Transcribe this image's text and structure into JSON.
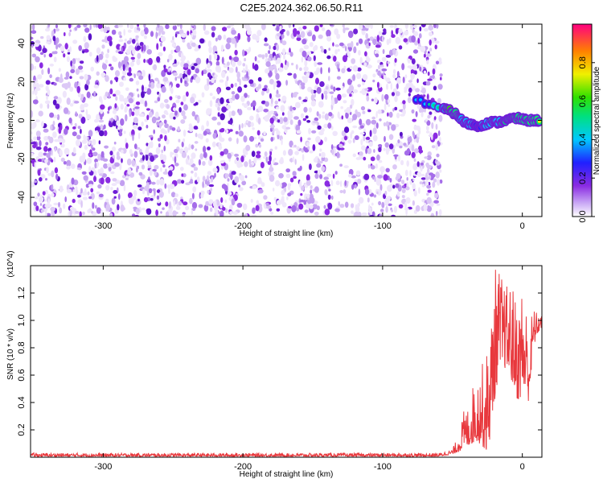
{
  "title": "C2E5.2024.362.06.50.R11",
  "colors": {
    "background_dots": "#8a2be2",
    "snr_line": "#e8383d",
    "axis": "#000000"
  },
  "chart_data": [
    {
      "type": "heatmap",
      "xlabel": "Height of straight line (km)",
      "ylabel": "Frequency (Hz)",
      "xlim": [
        -352,
        14
      ],
      "ylim": [
        -50,
        50
      ],
      "x_ticks": [
        -300,
        -200,
        -100,
        0
      ],
      "y_ticks": [
        -40,
        -20,
        0,
        20,
        40
      ],
      "noise_region_x": [
        -352,
        -58
      ],
      "colormap": "rainbow",
      "colorbar": {
        "label": "Normalized spectral amplitude",
        "range": [
          0,
          1
        ],
        "ticks": [
          "0.0",
          "0.2",
          "0.4",
          "0.6",
          "0.8"
        ]
      },
      "signal_track": [
        {
          "x": -76,
          "y": 11,
          "amp": 0.5
        },
        {
          "x": -57,
          "y": 6,
          "amp": 0.55
        },
        {
          "x": -52,
          "y": 5,
          "amp": 0.85
        },
        {
          "x": -47,
          "y": 3,
          "amp": 0.75
        },
        {
          "x": -42,
          "y": -1,
          "amp": 0.6
        },
        {
          "x": -37,
          "y": -2,
          "amp": 0.55
        },
        {
          "x": -32,
          "y": -3,
          "amp": 0.5
        },
        {
          "x": -27,
          "y": -2,
          "amp": 0.55
        },
        {
          "x": -22,
          "y": -1,
          "amp": 0.7
        },
        {
          "x": -17,
          "y": -1,
          "amp": 0.65
        },
        {
          "x": -12,
          "y": 0,
          "amp": 0.75
        },
        {
          "x": -7,
          "y": 1,
          "amp": 0.8
        },
        {
          "x": -2,
          "y": 1,
          "amp": 0.7
        },
        {
          "x": 3,
          "y": 0,
          "amp": 0.75
        },
        {
          "x": 8,
          "y": 0,
          "amp": 0.8
        },
        {
          "x": 13,
          "y": 0,
          "amp": 0.75
        }
      ]
    },
    {
      "type": "line",
      "xlabel": "Height of straight line (km)",
      "ylabel": "SNR (10 * v/v)",
      "y_multiplier": "(x10^4)",
      "xlim": [
        -352,
        14
      ],
      "ylim": [
        0,
        1.4
      ],
      "x_ticks": [
        -300,
        -200,
        -100,
        0
      ],
      "y_ticks": [
        0.2,
        0.4,
        0.6,
        0.8,
        1.0,
        1.2
      ],
      "envelope": [
        {
          "x": -352,
          "lo": 0.005,
          "hi": 0.03
        },
        {
          "x": -60,
          "lo": 0.005,
          "hi": 0.03
        },
        {
          "x": -50,
          "lo": 0.02,
          "hi": 0.06
        },
        {
          "x": -45,
          "lo": 0.04,
          "hi": 0.18
        },
        {
          "x": -42,
          "lo": 0.06,
          "hi": 0.34
        },
        {
          "x": -38,
          "lo": 0.08,
          "hi": 0.38
        },
        {
          "x": -35,
          "lo": 0.1,
          "hi": 0.55
        },
        {
          "x": -30,
          "lo": 0.1,
          "hi": 0.65
        },
        {
          "x": -25,
          "lo": 0.02,
          "hi": 0.8
        },
        {
          "x": -22,
          "lo": 0.2,
          "hi": 1.05
        },
        {
          "x": -20,
          "lo": 0.4,
          "hi": 1.4
        },
        {
          "x": -17,
          "lo": 0.6,
          "hi": 1.4
        },
        {
          "x": -12,
          "lo": 0.65,
          "hi": 1.25
        },
        {
          "x": -8,
          "lo": 0.55,
          "hi": 1.3
        },
        {
          "x": -3,
          "lo": 0.4,
          "hi": 1.1
        },
        {
          "x": 0,
          "lo": 0.45,
          "hi": 1.3
        },
        {
          "x": 5,
          "lo": 0.4,
          "hi": 1.0
        },
        {
          "x": 8,
          "lo": 0.8,
          "hi": 1.1
        },
        {
          "x": 11,
          "lo": 0.9,
          "hi": 1.05
        },
        {
          "x": 14,
          "lo": 0.95,
          "hi": 1.05
        }
      ]
    }
  ]
}
